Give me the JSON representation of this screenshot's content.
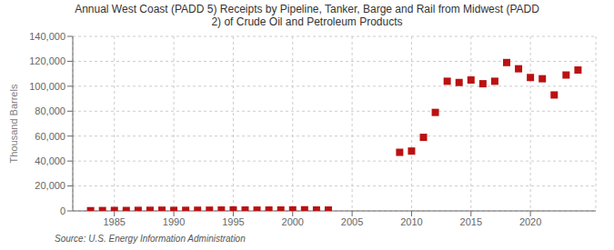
{
  "chart_data": {
    "type": "scatter",
    "title": "Annual West Coast (PADD 5) Receipts by Pipeline, Tanker, Barge and Rail from Midwest (PADD\n2) of Crude Oil and Petroleum Products",
    "ylabel": "Thousand Barrels",
    "annotations": [
      "Source: U.S. Energy Information Administration"
    ],
    "color": "#bb1111",
    "marker": "square",
    "grid": true,
    "xlim": [
      1981.5,
      2025.5
    ],
    "xticks": [
      1985,
      1990,
      1995,
      2000,
      2005,
      2010,
      2015,
      2020
    ],
    "ylim": [
      0,
      140000
    ],
    "yticks": [
      0,
      {
        "value": 20000,
        "label": "20,000"
      },
      {
        "value": 40000,
        "label": "40,000"
      },
      {
        "value": 60000,
        "label": "60,000"
      },
      {
        "value": 80000,
        "label": "80,000"
      },
      {
        "value": 100000,
        "label": "100,000"
      },
      {
        "value": 120000,
        "label": "120,000"
      },
      {
        "value": 140000,
        "label": "140,000"
      }
    ],
    "x": [
      1983,
      1984,
      1985,
      1986,
      1987,
      1988,
      1989,
      1990,
      1991,
      1992,
      1993,
      1994,
      1995,
      1996,
      1997,
      1998,
      1999,
      2000,
      2001,
      2002,
      2003,
      2009,
      2010,
      2011,
      2012,
      2013,
      2014,
      2015,
      2016,
      2017,
      2018,
      2019,
      2020,
      2021,
      2022,
      2023,
      2024
    ],
    "values": [
      200,
      300,
      400,
      350,
      450,
      500,
      600,
      450,
      500,
      550,
      600,
      700,
      800,
      700,
      650,
      700,
      750,
      800,
      900,
      750,
      700,
      47000,
      48000,
      59000,
      79000,
      104000,
      103000,
      105000,
      102000,
      104000,
      119000,
      114000,
      107000,
      106000,
      93000,
      109000,
      113000
    ]
  }
}
